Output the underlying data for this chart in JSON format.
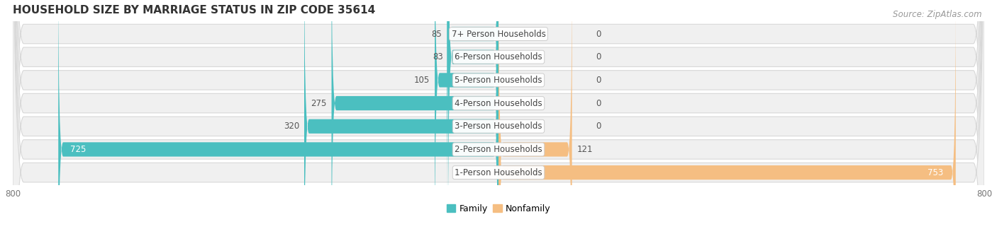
{
  "title": "HOUSEHOLD SIZE BY MARRIAGE STATUS IN ZIP CODE 35614",
  "source": "Source: ZipAtlas.com",
  "categories": [
    "7+ Person Households",
    "6-Person Households",
    "5-Person Households",
    "4-Person Households",
    "3-Person Households",
    "2-Person Households",
    "1-Person Households"
  ],
  "family_values": [
    85,
    83,
    105,
    275,
    320,
    725,
    0
  ],
  "nonfamily_values": [
    0,
    0,
    0,
    0,
    0,
    121,
    753
  ],
  "family_color": "#4BBFC0",
  "nonfamily_color": "#F5BE82",
  "row_bg_color": "#EBEBEB",
  "row_bg_inner": "#F7F7F7",
  "xlim_val": 800,
  "label_fontsize": 8.5,
  "value_fontsize": 8.5,
  "title_fontsize": 11,
  "source_fontsize": 8.5,
  "legend_labels": [
    "Family",
    "Nonfamily"
  ],
  "background_color": "#FFFFFF",
  "xtick_labels": [
    "800",
    "800"
  ]
}
